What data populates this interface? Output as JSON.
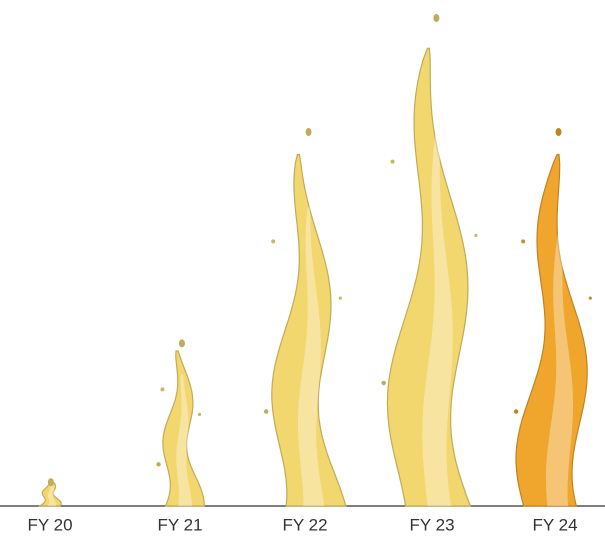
{
  "chart_data": {
    "type": "splash-bar",
    "categories": [
      "FY 20",
      "FY 21",
      "FY 22",
      "FY 23",
      "FY 24"
    ],
    "values": [
      28,
      168,
      381,
      496,
      381
    ],
    "colors": [
      "#f2d66e",
      "#f2d66e",
      "#f2d66e",
      "#f2d66e",
      "#f0a52c"
    ],
    "ylim": [
      0,
      500
    ]
  }
}
